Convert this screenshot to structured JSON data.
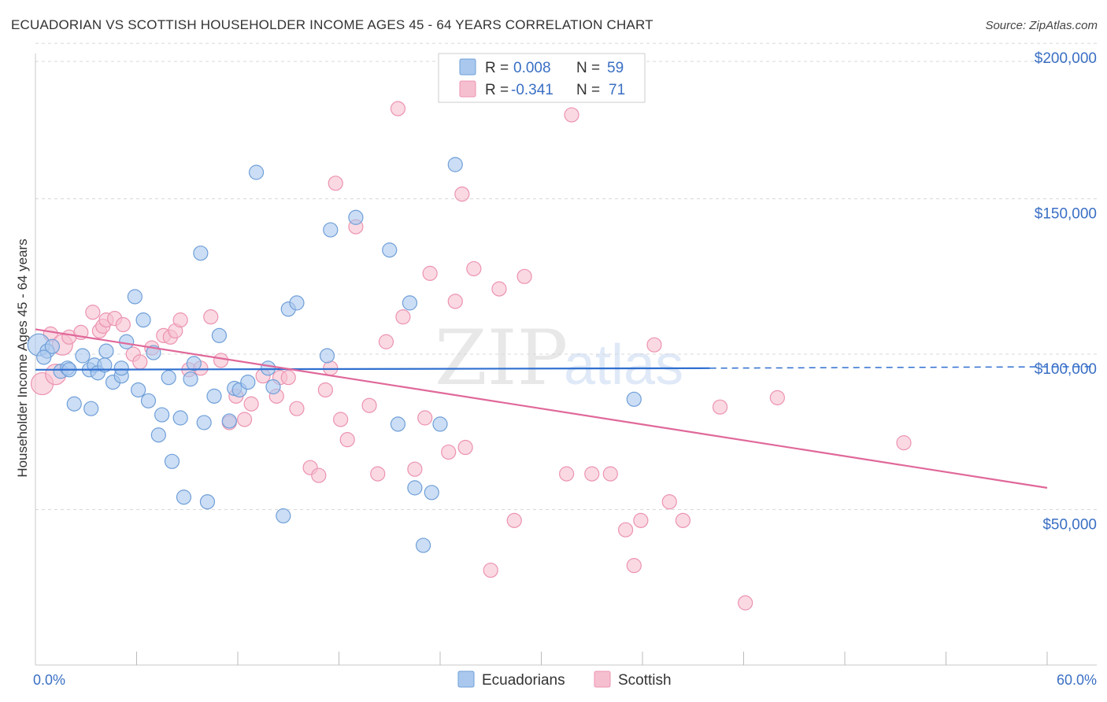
{
  "header": {
    "title": "ECUADORIAN VS SCOTTISH HOUSEHOLDER INCOME AGES 45 - 64 YEARS CORRELATION CHART",
    "source": "Source: ZipAtlas.com"
  },
  "watermark": {
    "zip": "ZIP",
    "atlas": "atlas"
  },
  "legend_top": {
    "rows": [
      {
        "r_label": "R =",
        "r_value": "0.008",
        "n_label": "N =",
        "n_value": "59"
      },
      {
        "r_label": "R =",
        "r_value": "-0.341",
        "n_label": "N =",
        "n_value": "71"
      }
    ]
  },
  "legend_bottom": {
    "items": [
      "Ecuadorians",
      "Scottish"
    ]
  },
  "colors": {
    "blue_fill": "#aac8ee",
    "blue_stroke": "#6f9fd8",
    "blue_line": "#2f6fd0",
    "pink_fill": "#f6bfd0",
    "pink_stroke": "#ec93b0",
    "pink_line": "#e0689a",
    "label_blue": "#3a6fc4",
    "grid": "#d8d8d8"
  },
  "chart_data": {
    "type": "scatter",
    "title": "ECUADORIAN VS SCOTTISH HOUSEHOLDER INCOME AGES 45 - 64 YEARS CORRELATION CHART",
    "xlabel": "",
    "ylabel": "Householder Income Ages 45 - 64 years",
    "xlim": [
      0,
      60
    ],
    "ylim": [
      0,
      210000
    ],
    "x_tick_labels": [
      "0.0%",
      "60.0%"
    ],
    "y_ticks": [
      50000,
      100000,
      150000,
      200000
    ],
    "y_tick_labels": [
      "$50,000",
      "$100,000",
      "$150,000",
      "$200,000"
    ],
    "grid": "horizontal dashed",
    "series": [
      {
        "name": "Ecuadorians",
        "R": 0.008,
        "N": 59,
        "trend": {
          "x": [
            0,
            40,
            60
          ],
          "y": [
            95000,
            95500,
            96000
          ],
          "solid_until": 40
        },
        "points": [
          [
            0.2,
            103000,
            14
          ],
          [
            0.7,
            101000,
            9
          ],
          [
            1.0,
            102500,
            9
          ],
          [
            1.5,
            94500,
            9
          ],
          [
            1.9,
            95500,
            9
          ],
          [
            2.0,
            95000,
            9
          ],
          [
            2.3,
            84000,
            9
          ],
          [
            2.8,
            99500,
            9
          ],
          [
            3.2,
            95000,
            9
          ],
          [
            3.3,
            82500,
            9
          ],
          [
            3.5,
            96500,
            9
          ],
          [
            3.7,
            94000,
            9
          ],
          [
            4.1,
            96500,
            9
          ],
          [
            4.2,
            101000,
            9
          ],
          [
            4.6,
            91000,
            9
          ],
          [
            5.1,
            93000,
            9
          ],
          [
            5.1,
            95500,
            9
          ],
          [
            5.4,
            104000,
            9
          ],
          [
            5.9,
            118500,
            9
          ],
          [
            6.1,
            88500,
            9
          ],
          [
            6.4,
            111000,
            9
          ],
          [
            6.7,
            85000,
            9
          ],
          [
            7.0,
            100500,
            9
          ],
          [
            7.3,
            74000,
            9
          ],
          [
            7.5,
            80500,
            9
          ],
          [
            7.9,
            92500,
            9
          ],
          [
            8.1,
            65500,
            9
          ],
          [
            8.6,
            79500,
            9
          ],
          [
            8.8,
            54000,
            9
          ],
          [
            9.2,
            92000,
            9
          ],
          [
            9.4,
            97000,
            9
          ],
          [
            9.8,
            132500,
            9
          ],
          [
            10.0,
            78000,
            9
          ],
          [
            10.2,
            52500,
            9
          ],
          [
            10.6,
            86500,
            9
          ],
          [
            10.9,
            106000,
            9
          ],
          [
            11.5,
            78500,
            9
          ],
          [
            11.8,
            89000,
            9
          ],
          [
            12.1,
            88500,
            9
          ],
          [
            12.6,
            91000,
            9
          ],
          [
            13.1,
            158500,
            9
          ],
          [
            13.8,
            95500,
            9
          ],
          [
            14.1,
            89500,
            9
          ],
          [
            14.7,
            48000,
            9
          ],
          [
            15.0,
            114500,
            9
          ],
          [
            15.5,
            116500,
            9
          ],
          [
            17.3,
            99500,
            9
          ],
          [
            17.5,
            140000,
            9
          ],
          [
            19.0,
            144000,
            9
          ],
          [
            21.0,
            133500,
            9
          ],
          [
            21.5,
            77500,
            9
          ],
          [
            22.2,
            116500,
            9
          ],
          [
            22.5,
            57000,
            9
          ],
          [
            23.0,
            38500,
            9
          ],
          [
            23.5,
            55500,
            9
          ],
          [
            24.0,
            77500,
            9
          ],
          [
            24.9,
            161000,
            9
          ],
          [
            35.5,
            85500,
            9
          ],
          [
            0.5,
            99000,
            9
          ]
        ]
      },
      {
        "name": "Scottish",
        "R": -0.341,
        "N": 71,
        "trend": {
          "x": [
            0,
            60
          ],
          "y": [
            108000,
            57000
          ]
        },
        "points": [
          [
            0.4,
            90500,
            14
          ],
          [
            0.9,
            106500,
            9
          ],
          [
            1.2,
            93500,
            13
          ],
          [
            1.6,
            103000,
            13
          ],
          [
            2.0,
            105500,
            9
          ],
          [
            2.7,
            107000,
            9
          ],
          [
            3.4,
            113500,
            9
          ],
          [
            3.8,
            107500,
            9
          ],
          [
            4.0,
            109000,
            9
          ],
          [
            4.2,
            111000,
            9
          ],
          [
            4.7,
            111500,
            9
          ],
          [
            5.2,
            109500,
            9
          ],
          [
            5.8,
            100000,
            9
          ],
          [
            6.2,
            97500,
            9
          ],
          [
            6.9,
            102000,
            9
          ],
          [
            7.6,
            106000,
            9
          ],
          [
            8.0,
            105500,
            9
          ],
          [
            8.3,
            107500,
            9
          ],
          [
            8.6,
            111000,
            9
          ],
          [
            9.1,
            95000,
            9
          ],
          [
            9.8,
            95500,
            9
          ],
          [
            10.4,
            112000,
            9
          ],
          [
            11.0,
            98000,
            9
          ],
          [
            11.5,
            78000,
            9
          ],
          [
            11.9,
            86500,
            9
          ],
          [
            12.4,
            79000,
            9
          ],
          [
            12.8,
            84000,
            9
          ],
          [
            13.5,
            93000,
            9
          ],
          [
            14.3,
            86500,
            9
          ],
          [
            14.5,
            92500,
            9
          ],
          [
            15.0,
            92500,
            9
          ],
          [
            15.5,
            82500,
            9
          ],
          [
            16.3,
            63500,
            9
          ],
          [
            16.8,
            61000,
            9
          ],
          [
            17.2,
            88500,
            9
          ],
          [
            17.5,
            95500,
            9
          ],
          [
            17.8,
            155000,
            9
          ],
          [
            18.1,
            79000,
            9
          ],
          [
            18.5,
            72500,
            9
          ],
          [
            19.0,
            141000,
            9
          ],
          [
            19.8,
            83500,
            9
          ],
          [
            20.3,
            61500,
            9
          ],
          [
            20.8,
            104000,
            9
          ],
          [
            21.5,
            179000,
            9
          ],
          [
            21.8,
            112000,
            9
          ],
          [
            22.5,
            63000,
            9
          ],
          [
            23.1,
            79500,
            9
          ],
          [
            23.4,
            126000,
            9
          ],
          [
            24.5,
            68500,
            9
          ],
          [
            24.9,
            117000,
            9
          ],
          [
            25.3,
            151500,
            9
          ],
          [
            25.5,
            70000,
            9
          ],
          [
            26.0,
            127500,
            9
          ],
          [
            27.0,
            30500,
            9
          ],
          [
            27.5,
            121000,
            9
          ],
          [
            28.4,
            46500,
            9
          ],
          [
            29.0,
            125000,
            9
          ],
          [
            31.5,
            61500,
            9
          ],
          [
            31.8,
            177000,
            9
          ],
          [
            33.0,
            61500,
            9
          ],
          [
            34.1,
            61500,
            9
          ],
          [
            35.0,
            43500,
            9
          ],
          [
            35.5,
            32000,
            9
          ],
          [
            35.9,
            46500,
            9
          ],
          [
            36.7,
            103000,
            9
          ],
          [
            37.6,
            52500,
            9
          ],
          [
            38.4,
            46500,
            9
          ],
          [
            40.6,
            83000,
            9
          ],
          [
            42.1,
            20000,
            9
          ],
          [
            44.0,
            86000,
            9
          ],
          [
            51.5,
            71500,
            9
          ]
        ]
      }
    ]
  }
}
